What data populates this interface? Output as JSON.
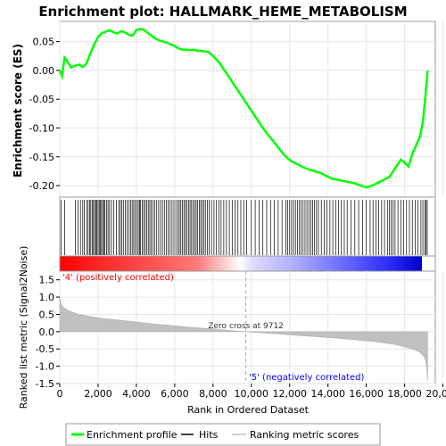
{
  "chart_data": {
    "type": "line",
    "title": "Enrichment plot: HALLMARK_HEME_METABOLISM",
    "xlabel": "Rank in Ordered Dataset",
    "xlim": [
      0,
      19600
    ],
    "x_ticks": [
      0,
      2000,
      4000,
      6000,
      8000,
      10000,
      12000,
      14000,
      16000,
      18000,
      20000
    ],
    "x_tick_labels": [
      "0",
      "2,000",
      "4,000",
      "6,000",
      "8,000",
      "10,000",
      "12,000",
      "14,000",
      "16,000",
      "18,000",
      "20,000"
    ],
    "es_panel": {
      "ylabel": "Enrichment score (ES)",
      "ylim": [
        -0.22,
        0.085
      ],
      "y_ticks": [
        0.05,
        0.0,
        -0.05,
        -0.1,
        -0.15,
        -0.2
      ],
      "y_tick_labels": [
        "0.05",
        "0.00",
        "-0.05",
        "-0.10",
        "-0.15",
        "-0.20"
      ],
      "grid": true,
      "series": [
        {
          "name": "Enrichment profile",
          "color": "#00ff00",
          "x": [
            0,
            120,
            250,
            400,
            600,
            800,
            1000,
            1200,
            1400,
            1600,
            1800,
            2000,
            2200,
            2400,
            2600,
            2800,
            3000,
            3200,
            3400,
            3600,
            3800,
            4000,
            4200,
            4400,
            4600,
            4800,
            5000,
            5200,
            5400,
            5600,
            5800,
            6000,
            6200,
            6400,
            6600,
            6800,
            7000,
            7200,
            7400,
            7600,
            7800,
            8000,
            8200,
            8400,
            8600,
            8800,
            9000,
            9200,
            9400,
            9600,
            9800,
            10000,
            10300,
            10600,
            10900,
            11200,
            11500,
            11800,
            12100,
            12400,
            12700,
            13000,
            13300,
            13600,
            13900,
            14200,
            14500,
            14800,
            15100,
            15400,
            15700,
            16000,
            16300,
            16600,
            16900,
            17200,
            17400,
            17600,
            17800,
            18000,
            18200,
            18400,
            18600,
            18800,
            18950,
            19100,
            19200
          ],
          "y": [
            0.0,
            -0.01,
            0.022,
            0.015,
            0.005,
            0.008,
            0.01,
            0.006,
            0.012,
            0.03,
            0.045,
            0.058,
            0.065,
            0.067,
            0.07,
            0.066,
            0.064,
            0.068,
            0.066,
            0.062,
            0.06,
            0.07,
            0.072,
            0.07,
            0.065,
            0.06,
            0.055,
            0.052,
            0.05,
            0.048,
            0.045,
            0.042,
            0.038,
            0.036,
            0.036,
            0.035,
            0.036,
            0.034,
            0.034,
            0.033,
            0.031,
            0.025,
            0.018,
            0.01,
            0.0,
            -0.01,
            -0.02,
            -0.03,
            -0.04,
            -0.05,
            -0.06,
            -0.07,
            -0.085,
            -0.1,
            -0.113,
            -0.125,
            -0.138,
            -0.15,
            -0.158,
            -0.163,
            -0.168,
            -0.172,
            -0.175,
            -0.178,
            -0.183,
            -0.188,
            -0.19,
            -0.192,
            -0.194,
            -0.196,
            -0.2,
            -0.203,
            -0.2,
            -0.195,
            -0.19,
            -0.185,
            -0.175,
            -0.165,
            -0.155,
            -0.16,
            -0.167,
            -0.145,
            -0.13,
            -0.115,
            -0.09,
            -0.04,
            0.0
          ]
        }
      ]
    },
    "hits_legend": "Hits",
    "hits": [
      80,
      250,
      820,
      950,
      1080,
      1200,
      1280,
      1400,
      1480,
      1560,
      1620,
      1700,
      1760,
      1820,
      1880,
      1940,
      2000,
      2060,
      2120,
      2180,
      2240,
      2300,
      2360,
      2440,
      2520,
      2600,
      2700,
      2820,
      2950,
      3080,
      3160,
      3240,
      3320,
      3420,
      3520,
      3620,
      3700,
      3780,
      3860,
      3940,
      4020,
      4100,
      4160,
      4220,
      4300,
      4380,
      4460,
      4540,
      4620,
      4700,
      4780,
      4860,
      4960,
      5060,
      5160,
      5260,
      5360,
      5460,
      5560,
      5660,
      5760,
      5860,
      5960,
      6060,
      6160,
      6240,
      6320,
      6400,
      6480,
      6560,
      6640,
      6720,
      6800,
      6880,
      6960,
      7040,
      7120,
      7200,
      7280,
      7360,
      7440,
      7520,
      7600,
      7700,
      7800,
      7920,
      8050,
      8180,
      8300,
      8420,
      8560,
      8700,
      8850,
      9000,
      9150,
      9300,
      9450,
      9600,
      9750,
      10000,
      10200,
      10400,
      10600,
      10800,
      11000,
      11200,
      11400,
      11600,
      11800,
      11900,
      12000,
      12100,
      12200,
      12300,
      12400,
      12500,
      12600,
      12700,
      12800,
      12900,
      13000,
      13100,
      13200,
      13300,
      13400,
      13500,
      13650,
      13800,
      13950,
      14100,
      14250,
      14400,
      14550,
      14700,
      14850,
      15000,
      15200,
      15400,
      15600,
      15800,
      16000,
      16200,
      16350,
      16500,
      16650,
      16800,
      16950,
      17100,
      17200,
      17300,
      17400,
      17500,
      17650,
      17800,
      17950,
      18100,
      18250,
      18400,
      18550,
      18700,
      18850,
      18950,
      19050,
      19120,
      19180
    ],
    "ranked_panel": {
      "ylabel": "Ranked list metric (Signal2Noise)",
      "ylim": [
        -1.5,
        1.75
      ],
      "y_ticks": [
        1.5,
        1.0,
        0.5,
        0.0,
        -0.5,
        -1.0,
        -1.5
      ],
      "y_tick_labels": [
        "1.5",
        "1.0",
        "0.5",
        "0.0",
        "-0.5",
        "-1.0",
        "-1.5"
      ],
      "grid": true,
      "legend": "Ranking metric scores",
      "fill_color": "#c0c0c0",
      "x": [
        0,
        60,
        200,
        500,
        1000,
        1500,
        2000,
        3000,
        4000,
        5000,
        6000,
        7000,
        8000,
        9000,
        9712,
        10500,
        11500,
        12500,
        13500,
        14500,
        15500,
        16500,
        17500,
        18000,
        18500,
        18800,
        19000,
        19100,
        19150,
        19200
      ],
      "y": [
        1.0,
        0.8,
        0.7,
        0.6,
        0.5,
        0.45,
        0.4,
        0.34,
        0.28,
        0.22,
        0.17,
        0.12,
        0.08,
        0.03,
        0.0,
        -0.03,
        -0.07,
        -0.11,
        -0.15,
        -0.19,
        -0.24,
        -0.29,
        -0.37,
        -0.44,
        -0.52,
        -0.6,
        -0.72,
        -0.85,
        -1.05,
        -1.4
      ]
    },
    "zero_cross_label": "Zero cross at 9712",
    "zero_cross_x": 9712,
    "positive_label": "'4' (positively correlated)",
    "negative_label": "'5' (negatively correlated)",
    "colors": {
      "profile": "#00ff00",
      "positive": "#ff0000",
      "negative": "#0000ff",
      "positive_text": "#ff0000",
      "negative_text": "#0000ff",
      "grid": "#e6e6e6"
    },
    "legend_items": [
      {
        "label": "Enrichment profile",
        "color": "#00ff00"
      },
      {
        "label": "Hits",
        "color": "#000000"
      },
      {
        "label": "Ranking metric scores",
        "color": "#c0c0c0"
      }
    ]
  }
}
